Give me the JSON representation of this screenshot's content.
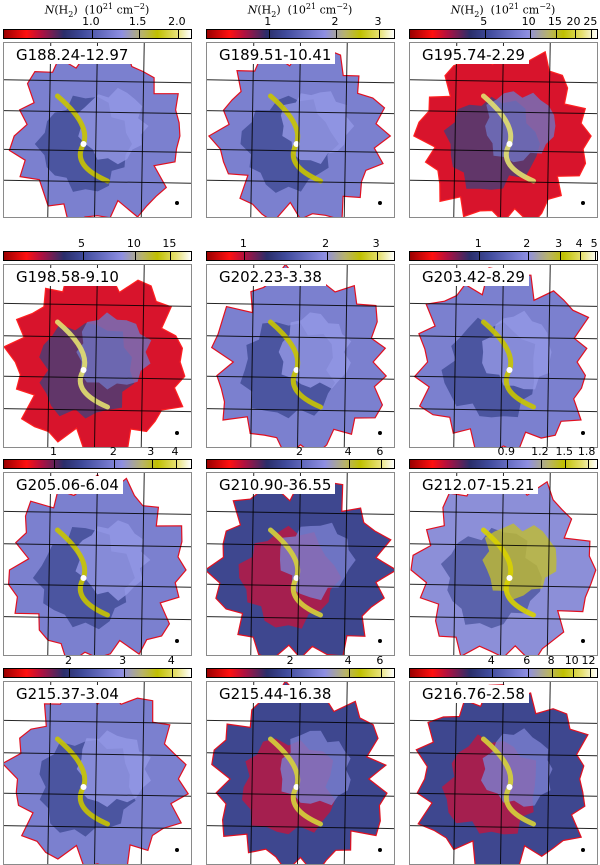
{
  "figure": {
    "colorbar_title_template": "N(H2) (10^21 cm^-2)",
    "panels": [
      {
        "name": "G188.24-12.97",
        "show_title": true,
        "ticks": [
          "1.0",
          "1.5",
          "2.0"
        ],
        "tick_pos": [
          0.47,
          0.72,
          0.93
        ],
        "mix": "blue"
      },
      {
        "name": "G189.51-10.41",
        "show_title": true,
        "ticks": [
          "1",
          "2",
          "3"
        ],
        "tick_pos": [
          0.33,
          0.69,
          0.92
        ],
        "mix": "blue"
      },
      {
        "name": "G195.74-2.29",
        "show_title": true,
        "ticks": [
          "5",
          "10",
          "15",
          "20",
          "25"
        ],
        "tick_pos": [
          0.4,
          0.64,
          0.78,
          0.88,
          0.97
        ],
        "mix": "red"
      },
      {
        "name": "G198.58-9.10",
        "show_title": false,
        "ticks": [
          "5",
          "10",
          "15"
        ],
        "tick_pos": [
          0.42,
          0.7,
          0.89
        ],
        "mix": "red"
      },
      {
        "name": "G202.23-3.38",
        "show_title": false,
        "ticks": [
          "1",
          "2",
          "3"
        ],
        "tick_pos": [
          0.2,
          0.64,
          0.91
        ],
        "mix": "blue"
      },
      {
        "name": "G203.42-8.29",
        "show_title": false,
        "ticks": [
          "1",
          "2",
          "3",
          "4",
          "5"
        ],
        "tick_pos": [
          0.37,
          0.63,
          0.8,
          0.91,
          0.99
        ],
        "mix": "blue"
      },
      {
        "name": "G205.06-6.04",
        "show_title": false,
        "ticks": [
          "1",
          "2",
          "3",
          "4"
        ],
        "tick_pos": [
          0.27,
          0.59,
          0.79,
          0.92
        ],
        "mix": "blue"
      },
      {
        "name": "G210.90-36.55",
        "show_title": false,
        "ticks": [
          "2",
          "4",
          "6"
        ],
        "tick_pos": [
          0.5,
          0.76,
          0.93
        ],
        "mix": "dark"
      },
      {
        "name": "G212.07-15.21",
        "show_title": false,
        "ticks": [
          "0.9",
          "1.2",
          "1.5",
          "1.8"
        ],
        "tick_pos": [
          0.52,
          0.7,
          0.83,
          0.95
        ],
        "mix": "yellow"
      },
      {
        "name": "G215.37-3.04",
        "show_title": false,
        "ticks": [
          "2",
          "3",
          "4"
        ],
        "tick_pos": [
          0.35,
          0.64,
          0.9
        ],
        "mix": "blue"
      },
      {
        "name": "G215.44-16.38",
        "show_title": false,
        "ticks": [
          "2",
          "4",
          "6"
        ],
        "tick_pos": [
          0.45,
          0.76,
          0.93
        ],
        "mix": "dark"
      },
      {
        "name": "G216.76-2.58",
        "show_title": false,
        "ticks": [
          "4",
          "6",
          "8",
          "10",
          "12"
        ],
        "tick_pos": [
          0.44,
          0.63,
          0.76,
          0.87,
          0.96
        ],
        "mix": "dark"
      }
    ]
  }
}
